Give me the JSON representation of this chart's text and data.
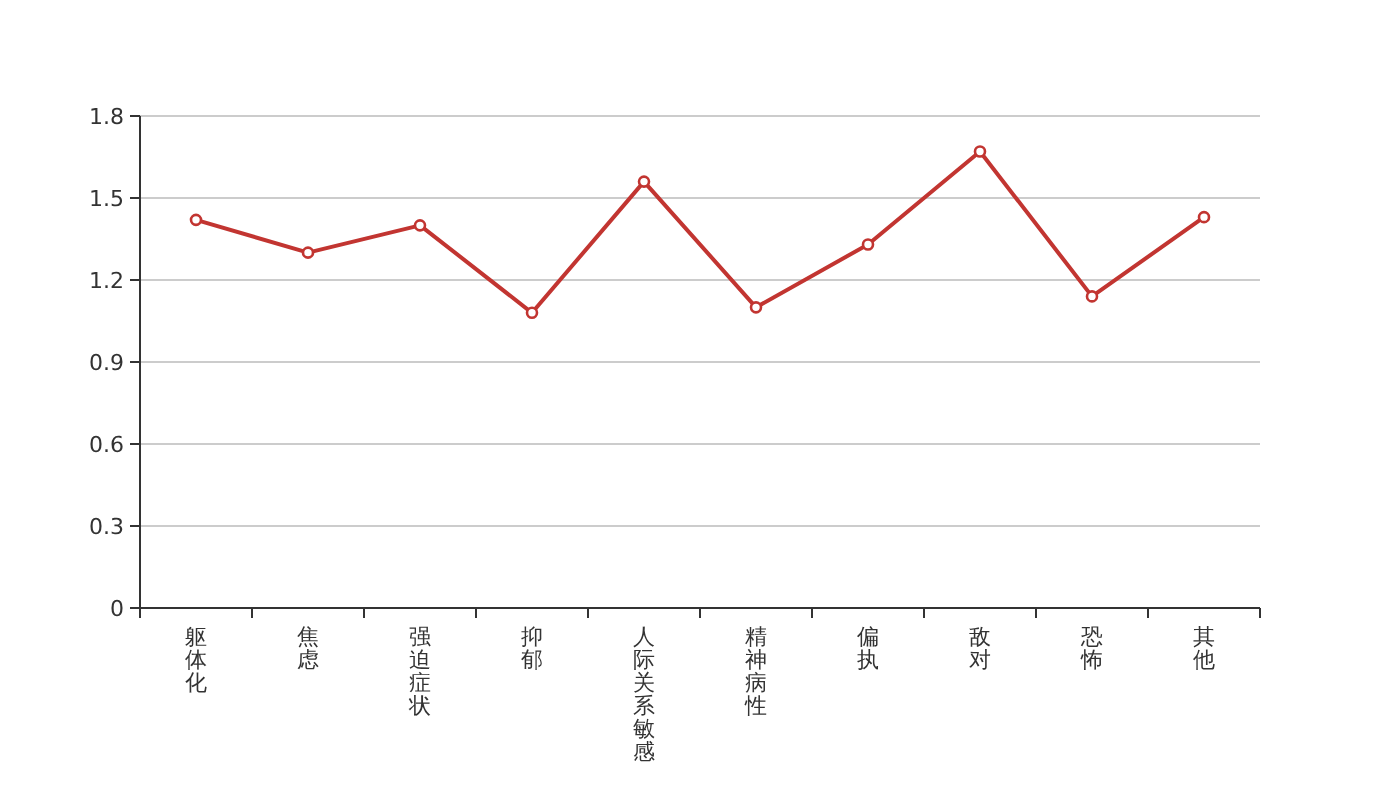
{
  "chart_data": {
    "type": "line",
    "categories": [
      "躯体化",
      "焦虑",
      "强迫症状",
      "抑郁",
      "人际关系敏感",
      "精神病性",
      "偏执",
      "敌对",
      "恐怖",
      "其他"
    ],
    "series": [
      {
        "color": "#c23531",
        "values": [
          1.42,
          1.3,
          1.4,
          1.08,
          1.56,
          1.1,
          1.33,
          1.67,
          1.14,
          1.43
        ]
      }
    ],
    "ylim": [
      0,
      1.8
    ],
    "yticks": [
      0,
      0.3,
      0.6,
      0.9,
      1.2,
      1.5,
      1.8
    ],
    "grid": "y",
    "marker": "circle",
    "line_style": "solid"
  }
}
